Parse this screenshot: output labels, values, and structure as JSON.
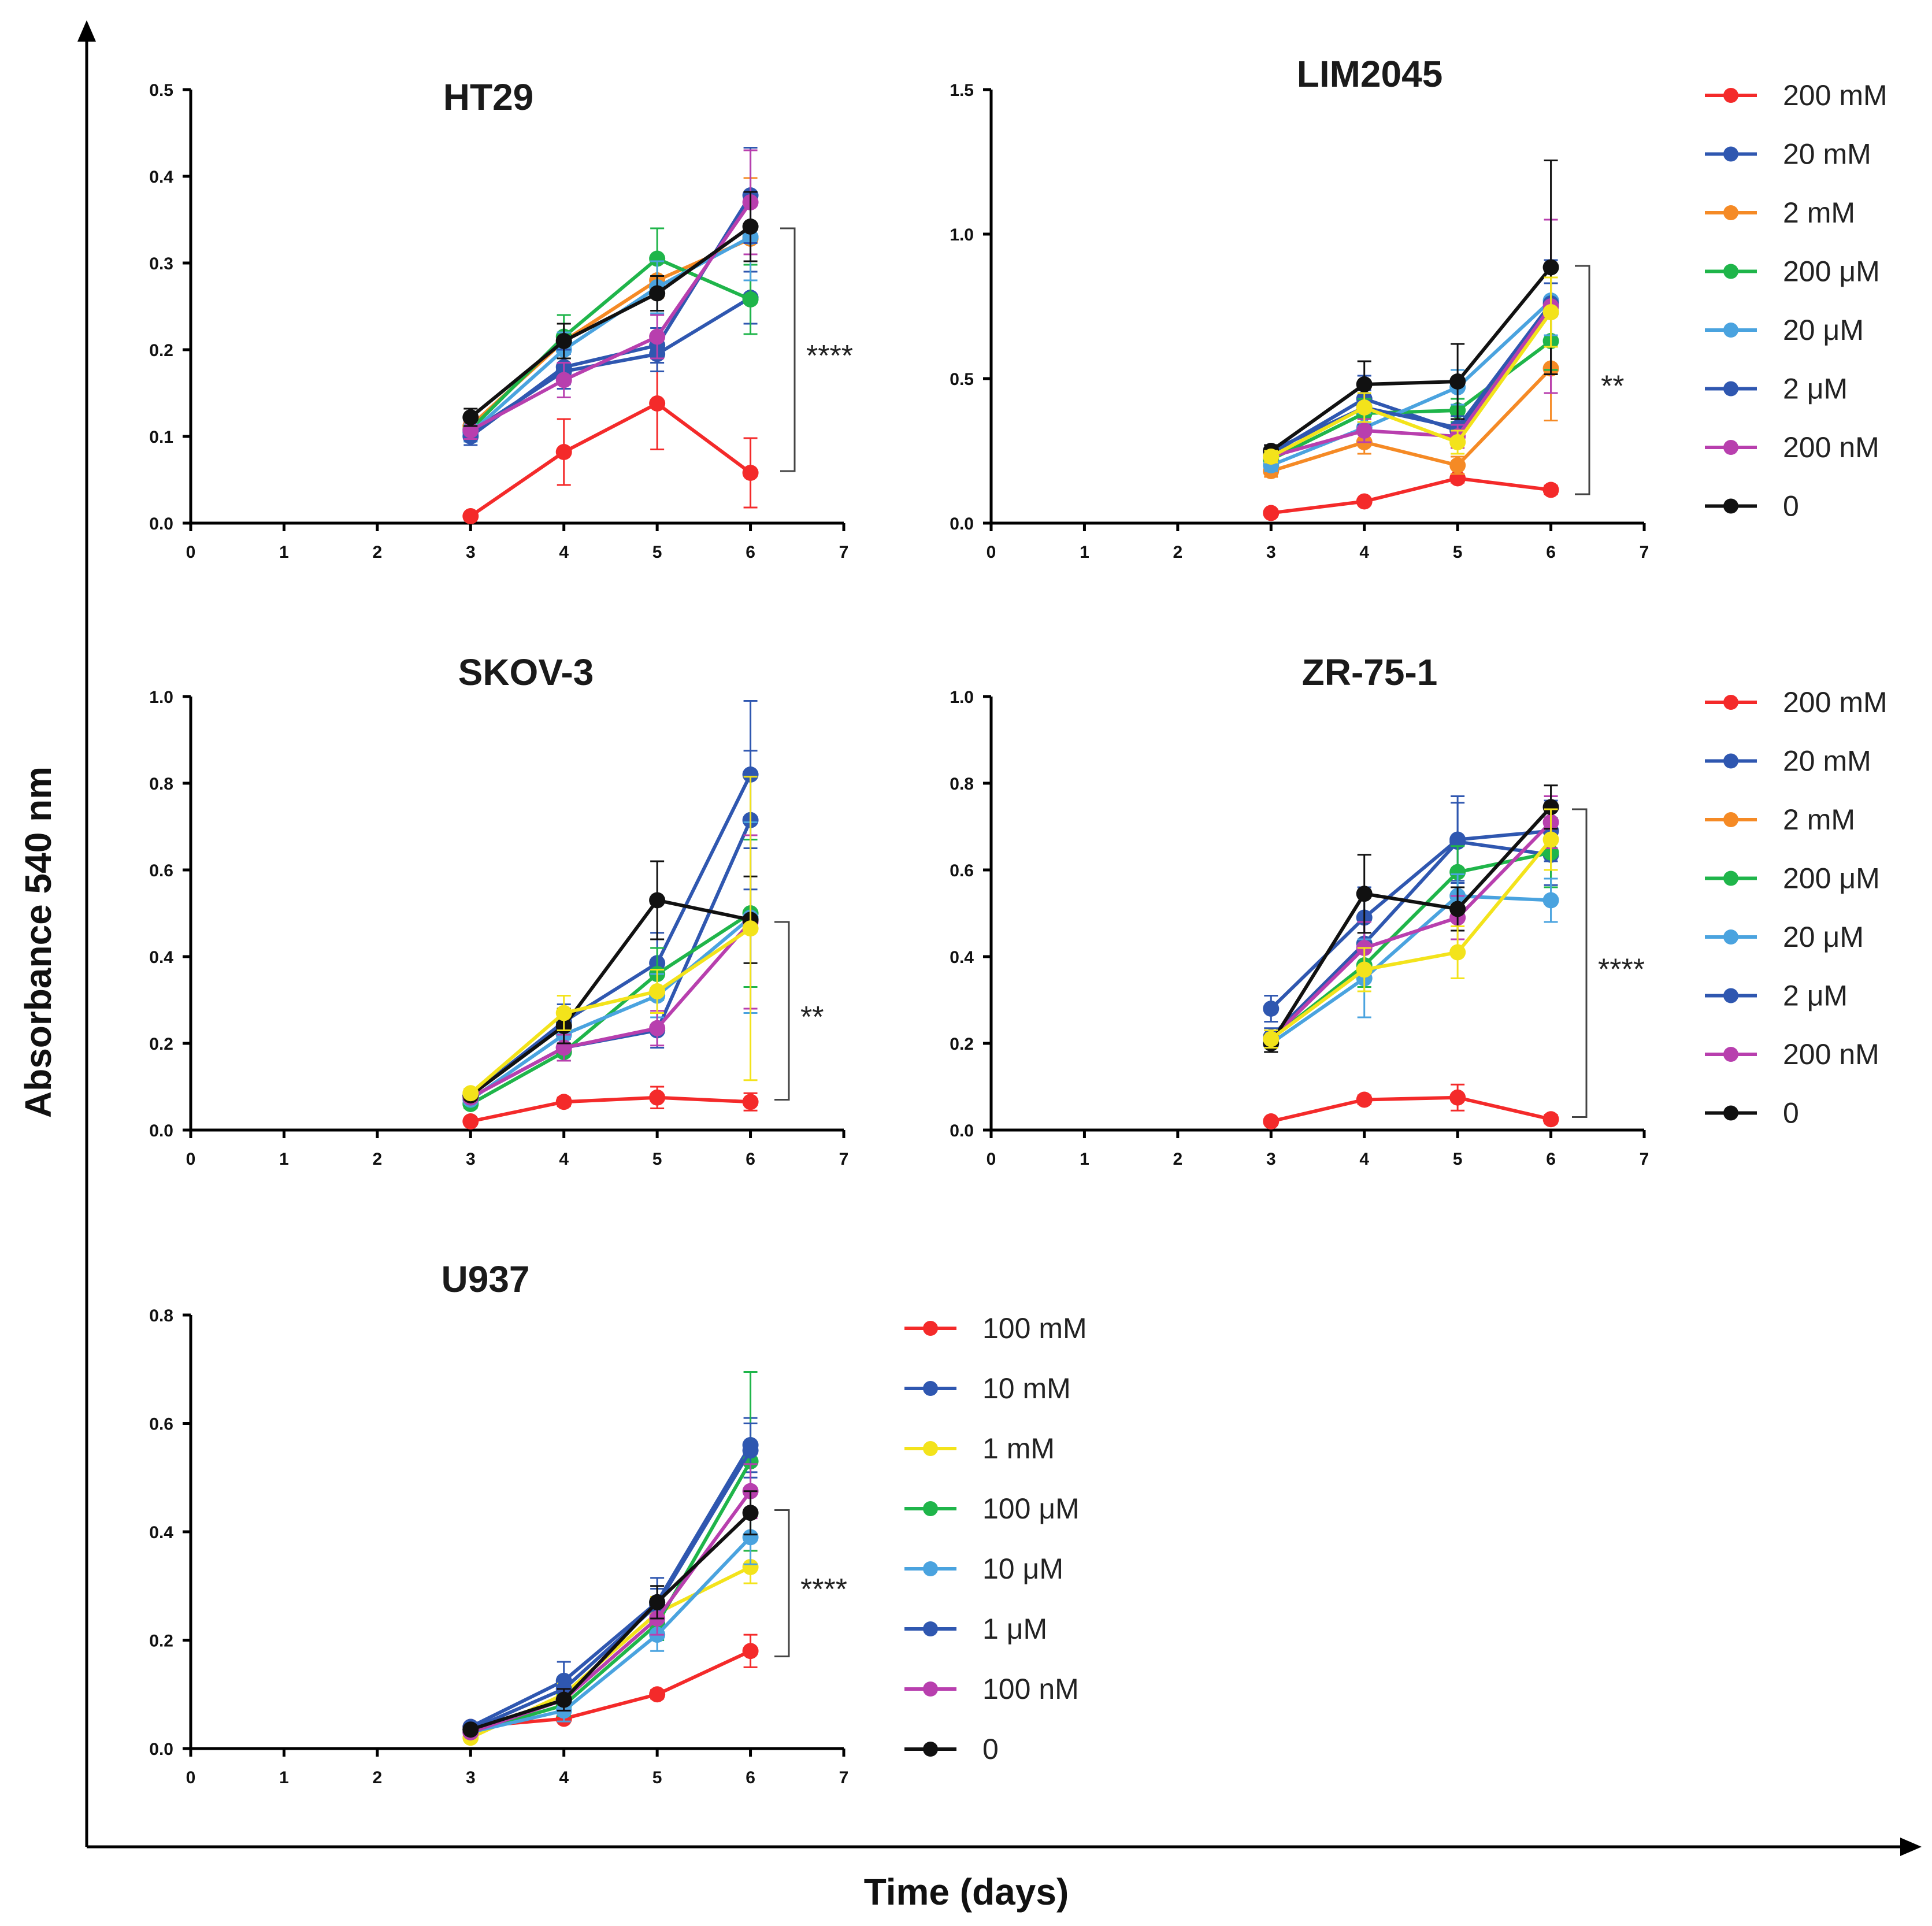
{
  "figure": {
    "ylabel": "Absorbance 540 nm",
    "xlabel": "Time (days)"
  },
  "chart_data": [
    {
      "type": "line",
      "title": "HT29",
      "xlim": [
        0,
        7
      ],
      "ylim": [
        0,
        0.5
      ],
      "xticks": [
        "0",
        "1",
        "2",
        "3",
        "4",
        "5",
        "6",
        "7"
      ],
      "yticks": [
        "0.0",
        "0.1",
        "0.2",
        "0.3",
        "0.4",
        "0.5"
      ],
      "significance": "****",
      "x": [
        3,
        4,
        5,
        6
      ],
      "series": [
        {
          "name": "200 mM",
          "color": "#f42a2a",
          "values": [
            0.008,
            0.082,
            0.138,
            0.058
          ],
          "err": [
            0.003,
            0.038,
            0.053,
            0.04
          ]
        },
        {
          "name": "20 mM",
          "color": "#2f57b0",
          "values": [
            0.105,
            0.175,
            0.195,
            0.26
          ],
          "err": [
            0.01,
            0.02,
            0.02,
            0.03
          ]
        },
        {
          "name": "2 mM",
          "color": "#f58a25",
          "values": [
            0.112,
            0.21,
            0.28,
            0.328
          ],
          "err": [
            0.01,
            0.02,
            0.02,
            0.07
          ]
        },
        {
          "name": "200 μM",
          "color": "#1fb54a",
          "values": [
            0.108,
            0.215,
            0.305,
            0.258
          ],
          "err": [
            0.01,
            0.025,
            0.035,
            0.04
          ]
        },
        {
          "name": "20 μM",
          "color": "#4aa3df",
          "values": [
            0.104,
            0.2,
            0.272,
            0.33
          ],
          "err": [
            0.01,
            0.02,
            0.03,
            0.05
          ]
        },
        {
          "name": "2 μM",
          "color": "#2f57b0",
          "values": [
            0.1,
            0.18,
            0.205,
            0.378
          ],
          "err": [
            0.01,
            0.02,
            0.02,
            0.055
          ]
        },
        {
          "name": "200 nM",
          "color": "#b83fae",
          "values": [
            0.107,
            0.165,
            0.215,
            0.37
          ],
          "err": [
            0.01,
            0.02,
            0.025,
            0.06
          ]
        },
        {
          "name": "0",
          "color": "#111111",
          "values": [
            0.122,
            0.21,
            0.265,
            0.342
          ],
          "err": [
            0.01,
            0.02,
            0.02,
            0.04
          ]
        }
      ]
    },
    {
      "type": "line",
      "title": "LIM2045",
      "xlim": [
        0,
        7
      ],
      "ylim": [
        0,
        1.5
      ],
      "xticks": [
        "0",
        "1",
        "2",
        "3",
        "4",
        "5",
        "6",
        "7"
      ],
      "yticks": [
        "0.0",
        "0.5",
        "1.0",
        "1.5"
      ],
      "significance": "**",
      "x": [
        3,
        4,
        5,
        6
      ],
      "series": [
        {
          "name": "200 mM",
          "color": "#f42a2a",
          "values": [
            0.035,
            0.075,
            0.155,
            0.115
          ],
          "err": [
            0.005,
            0.01,
            0.015,
            0.015
          ]
        },
        {
          "name": "20 mM",
          "color": "#2f57b0",
          "values": [
            0.24,
            0.43,
            0.32,
            0.73
          ],
          "err": [
            0.02,
            0.08,
            0.04,
            0.1
          ]
        },
        {
          "name": "2 mM",
          "color": "#f58a25",
          "values": [
            0.18,
            0.28,
            0.2,
            0.535
          ],
          "err": [
            0.02,
            0.04,
            0.03,
            0.18
          ]
        },
        {
          "name": "200 μM",
          "color": "#1fb54a",
          "values": [
            0.22,
            0.38,
            0.39,
            0.63
          ],
          "err": [
            0.02,
            0.05,
            0.04,
            0.1
          ]
        },
        {
          "name": "20 μM",
          "color": "#4aa3df",
          "values": [
            0.2,
            0.33,
            0.47,
            0.77
          ],
          "err": [
            0.02,
            0.05,
            0.06,
            0.12
          ]
        },
        {
          "name": "2 μM",
          "color": "#2f57b0",
          "values": [
            0.25,
            0.4,
            0.33,
            0.76
          ],
          "err": [
            0.02,
            0.06,
            0.04,
            0.15
          ]
        },
        {
          "name": "200 nM",
          "color": "#b83fae",
          "values": [
            0.23,
            0.32,
            0.3,
            0.75
          ],
          "err": [
            0.02,
            0.04,
            0.04,
            0.3
          ]
        },
        {
          "name": "0",
          "color": "#111111",
          "values": [
            0.25,
            0.48,
            0.49,
            0.885
          ],
          "err": [
            0.02,
            0.08,
            0.13,
            0.37
          ]
        },
        {
          "name": "",
          "color": "#f3e31b",
          "values": [
            0.23,
            0.4,
            0.28,
            0.73
          ],
          "err": [
            0.02,
            0.05,
            0.04,
            0.12
          ]
        }
      ]
    },
    {
      "type": "line",
      "title": "SKOV-3",
      "xlim": [
        0,
        7
      ],
      "ylim": [
        0,
        1.0
      ],
      "xticks": [
        "0",
        "1",
        "2",
        "3",
        "4",
        "5",
        "6",
        "7"
      ],
      "yticks": [
        "0.0",
        "0.2",
        "0.4",
        "0.6",
        "0.8",
        "1.0"
      ],
      "significance": "**",
      "x": [
        3,
        4,
        5,
        6
      ],
      "series": [
        {
          "name": "200 mM",
          "color": "#f42a2a",
          "values": [
            0.02,
            0.065,
            0.075,
            0.065
          ],
          "err": [
            0.005,
            0.01,
            0.025,
            0.02
          ]
        },
        {
          "name": "20 mM",
          "color": "#2f57b0",
          "values": [
            0.08,
            0.25,
            0.385,
            0.82
          ],
          "err": [
            0.01,
            0.04,
            0.07,
            0.17
          ]
        },
        {
          "name": "2 μM",
          "color": "#2f57b0",
          "values": [
            0.075,
            0.19,
            0.23,
            0.715
          ],
          "err": [
            0.01,
            0.03,
            0.04,
            0.16
          ]
        },
        {
          "name": "200 μM",
          "color": "#1fb54a",
          "values": [
            0.06,
            0.18,
            0.36,
            0.5
          ],
          "err": [
            0.01,
            0.02,
            0.06,
            0.17
          ]
        },
        {
          "name": "20 μM",
          "color": "#4aa3df",
          "values": [
            0.07,
            0.22,
            0.31,
            0.49
          ],
          "err": [
            0.01,
            0.03,
            0.05,
            0.22
          ]
        },
        {
          "name": "200 nM",
          "color": "#b83fae",
          "values": [
            0.075,
            0.19,
            0.235,
            0.48
          ],
          "err": [
            0.01,
            0.03,
            0.04,
            0.2
          ]
        },
        {
          "name": "0",
          "color": "#111111",
          "values": [
            0.08,
            0.24,
            0.53,
            0.485
          ],
          "err": [
            0.01,
            0.04,
            0.09,
            0.1
          ]
        },
        {
          "name": "",
          "color": "#f3e31b",
          "values": [
            0.085,
            0.27,
            0.32,
            0.465
          ],
          "err": [
            0.01,
            0.04,
            0.05,
            0.35
          ]
        }
      ]
    },
    {
      "type": "line",
      "title": "ZR-75-1",
      "xlim": [
        0,
        7
      ],
      "ylim": [
        0,
        1.0
      ],
      "xticks": [
        "0",
        "1",
        "2",
        "3",
        "4",
        "5",
        "6",
        "7"
      ],
      "yticks": [
        "0.0",
        "0.2",
        "0.4",
        "0.6",
        "0.8",
        "1.0"
      ],
      "significance": "****",
      "x": [
        3,
        4,
        5,
        6
      ],
      "series": [
        {
          "name": "200 mM",
          "color": "#f42a2a",
          "values": [
            0.02,
            0.07,
            0.075,
            0.025
          ],
          "err": [
            0.005,
            0.01,
            0.03,
            0.01
          ]
        },
        {
          "name": "20 mM",
          "color": "#2f57b0",
          "values": [
            0.28,
            0.49,
            0.67,
            0.69
          ],
          "err": [
            0.03,
            0.07,
            0.1,
            0.07
          ]
        },
        {
          "name": "2 μM",
          "color": "#2f57b0",
          "values": [
            0.215,
            0.43,
            0.665,
            0.635
          ],
          "err": [
            0.02,
            0.06,
            0.09,
            0.07
          ]
        },
        {
          "name": "200 μM",
          "color": "#1fb54a",
          "values": [
            0.21,
            0.38,
            0.595,
            0.64
          ],
          "err": [
            0.02,
            0.05,
            0.06,
            0.08
          ]
        },
        {
          "name": "20 μM",
          "color": "#4aa3df",
          "values": [
            0.2,
            0.35,
            0.54,
            0.53
          ],
          "err": [
            0.02,
            0.09,
            0.05,
            0.05
          ]
        },
        {
          "name": "200 nM",
          "color": "#b83fae",
          "values": [
            0.21,
            0.42,
            0.49,
            0.71
          ],
          "err": [
            0.02,
            0.06,
            0.05,
            0.06
          ]
        },
        {
          "name": "0",
          "color": "#111111",
          "values": [
            0.2,
            0.545,
            0.51,
            0.745
          ],
          "err": [
            0.02,
            0.09,
            0.05,
            0.05
          ]
        },
        {
          "name": "",
          "color": "#f3e31b",
          "values": [
            0.21,
            0.37,
            0.41,
            0.67
          ],
          "err": [
            0.02,
            0.05,
            0.06,
            0.07
          ]
        }
      ]
    },
    {
      "type": "line",
      "title": "U937",
      "xlim": [
        0,
        7
      ],
      "ylim": [
        0,
        0.8
      ],
      "xticks": [
        "0",
        "1",
        "2",
        "3",
        "4",
        "5",
        "6",
        "7"
      ],
      "yticks": [
        "0.0",
        "0.2",
        "0.4",
        "0.6",
        "0.8"
      ],
      "significance": "****",
      "x": [
        3,
        4,
        5,
        6
      ],
      "series": [
        {
          "name": "100 mM",
          "color": "#f42a2a",
          "values": [
            0.04,
            0.055,
            0.1,
            0.18
          ],
          "err": [
            0.005,
            0.005,
            0.008,
            0.03
          ]
        },
        {
          "name": "10 mM",
          "color": "#2f57b0",
          "values": [
            0.04,
            0.125,
            0.27,
            0.56
          ],
          "err": [
            0.005,
            0.035,
            0.045,
            0.05
          ]
        },
        {
          "name": "1 mM",
          "color": "#f3e31b",
          "values": [
            0.02,
            0.1,
            0.25,
            0.335
          ],
          "err": [
            0.005,
            0.02,
            0.03,
            0.03
          ]
        },
        {
          "name": "100 μM",
          "color": "#1fb54a",
          "values": [
            0.03,
            0.08,
            0.23,
            0.53
          ],
          "err": [
            0.005,
            0.02,
            0.03,
            0.165
          ]
        },
        {
          "name": "10 μM",
          "color": "#4aa3df",
          "values": [
            0.03,
            0.07,
            0.21,
            0.39
          ],
          "err": [
            0.005,
            0.02,
            0.03,
            0.05
          ]
        },
        {
          "name": "1 μM",
          "color": "#2f57b0",
          "values": [
            0.035,
            0.11,
            0.265,
            0.55
          ],
          "err": [
            0.005,
            0.02,
            0.03,
            0.05
          ]
        },
        {
          "name": "100 nM",
          "color": "#b83fae",
          "values": [
            0.03,
            0.09,
            0.24,
            0.475
          ],
          "err": [
            0.005,
            0.02,
            0.03,
            0.05
          ]
        },
        {
          "name": "0",
          "color": "#111111",
          "values": [
            0.035,
            0.09,
            0.27,
            0.435
          ],
          "err": [
            0.005,
            0.02,
            0.03,
            0.04
          ]
        }
      ]
    }
  ],
  "legends": [
    {
      "items": [
        {
          "label": "200 mM",
          "color": "#f42a2a"
        },
        {
          "label": "20 mM",
          "color": "#2f57b0"
        },
        {
          "label": "2 mM",
          "color": "#f58a25"
        },
        {
          "label": "200 μM",
          "color": "#1fb54a"
        },
        {
          "label": "20 μM",
          "color": "#4aa3df"
        },
        {
          "label": "2 μM",
          "color": "#2f57b0"
        },
        {
          "label": "200 nM",
          "color": "#b83fae"
        },
        {
          "label": "0",
          "color": "#111111"
        }
      ]
    },
    {
      "items": [
        {
          "label": "200 mM",
          "color": "#f42a2a"
        },
        {
          "label": "20 mM",
          "color": "#2f57b0"
        },
        {
          "label": "2 mM",
          "color": "#f58a25"
        },
        {
          "label": "200 μM",
          "color": "#1fb54a"
        },
        {
          "label": "20 μM",
          "color": "#4aa3df"
        },
        {
          "label": "2 μM",
          "color": "#2f57b0"
        },
        {
          "label": "200 nM",
          "color": "#b83fae"
        },
        {
          "label": "0",
          "color": "#111111"
        }
      ]
    },
    {
      "items": [
        {
          "label": "100 mM",
          "color": "#f42a2a"
        },
        {
          "label": "10 mM",
          "color": "#2f57b0"
        },
        {
          "label": "1 mM",
          "color": "#f3e31b"
        },
        {
          "label": "100 μM",
          "color": "#1fb54a"
        },
        {
          "label": "10 μM",
          "color": "#4aa3df"
        },
        {
          "label": "1 μM",
          "color": "#2f57b0"
        },
        {
          "label": "100 nM",
          "color": "#b83fae"
        },
        {
          "label": "0",
          "color": "#111111"
        }
      ]
    }
  ]
}
